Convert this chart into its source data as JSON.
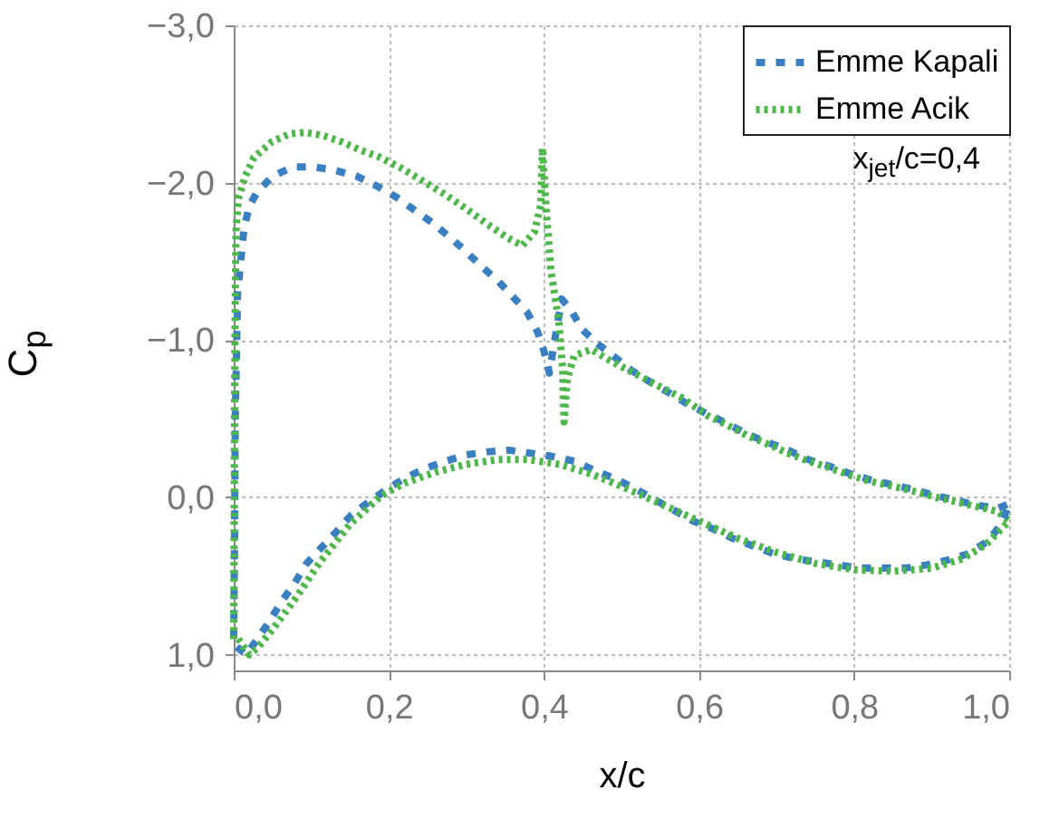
{
  "chart_data": {
    "type": "line",
    "xlabel": "x/c",
    "ylabel": "C$_{p}$",
    "annotations": [
      "x$_{jet}$/c=0,4"
    ],
    "xlim": [
      0,
      1
    ],
    "xticks": [
      {
        "value": 0,
        "label": "0,0"
      },
      {
        "value": 0.2,
        "label": "0,2"
      },
      {
        "value": 0.4,
        "label": "0,4"
      },
      {
        "value": 0.6,
        "label": "0,6"
      },
      {
        "value": 0.8,
        "label": "0,8"
      },
      {
        "value": 1,
        "label": "1,0"
      }
    ],
    "ylim": [
      1.1,
      -3
    ],
    "yticks": [
      {
        "value": -3,
        "label": "−3,0"
      },
      {
        "value": -2,
        "label": "−2,0"
      },
      {
        "value": -1,
        "label": "−1,0"
      },
      {
        "value": 0,
        "label": "0,0"
      },
      {
        "value": 1,
        "label": "1,0"
      }
    ],
    "grid": true,
    "legend": "top right",
    "series": [
      {
        "name": "Emme Kapali",
        "color": "#3a7fc1",
        "line_style": "dashed",
        "x": [
          0.0,
          0.001,
          0.002,
          0.005,
          0.013,
          0.02,
          0.03,
          0.05,
          0.076,
          0.104,
          0.13,
          0.159,
          0.184,
          0.209,
          0.232,
          0.255,
          0.277,
          0.298,
          0.319,
          0.34,
          0.359,
          0.378,
          0.392,
          0.4,
          0.404,
          0.407,
          0.414,
          0.423,
          0.435,
          0.449,
          0.468,
          0.489,
          0.512,
          0.538,
          0.563,
          0.586,
          0.611,
          0.636,
          0.663,
          0.688,
          0.715,
          0.741,
          0.767,
          0.795,
          0.822,
          0.85,
          0.876,
          0.906,
          0.933,
          0.959,
          0.985,
          1.0
        ],
        "values": [
          0.9,
          0.3,
          -0.5,
          -1.3,
          -1.7,
          -1.85,
          -1.94,
          -2.04,
          -2.1,
          -2.1,
          -2.08,
          -2.04,
          -1.98,
          -1.91,
          -1.83,
          -1.75,
          -1.66,
          -1.57,
          -1.47,
          -1.38,
          -1.28,
          -1.18,
          -1.05,
          -0.93,
          -0.86,
          -0.79,
          -1.0,
          -1.26,
          -1.19,
          -1.07,
          -0.98,
          -0.9,
          -0.81,
          -0.73,
          -0.66,
          -0.59,
          -0.53,
          -0.47,
          -0.4,
          -0.35,
          -0.3,
          -0.24,
          -0.2,
          -0.15,
          -0.11,
          -0.08,
          -0.05,
          -0.01,
          0.02,
          0.05,
          0.07,
          0.04
        ]
      },
      {
        "name": "Emme Acik",
        "color": "#4db849",
        "line_style": "dotted",
        "x": [
          0.0,
          0.0005,
          0.001,
          0.002,
          0.003,
          0.006,
          0.014,
          0.026,
          0.049,
          0.072,
          0.092,
          0.115,
          0.139,
          0.162,
          0.189,
          0.217,
          0.244,
          0.271,
          0.298,
          0.326,
          0.353,
          0.372,
          0.388,
          0.396,
          0.398,
          0.403,
          0.409,
          0.419,
          0.424,
          0.426,
          0.43,
          0.439,
          0.461,
          0.485,
          0.516,
          0.547,
          0.579,
          0.611,
          0.636,
          0.663,
          0.688,
          0.715,
          0.741,
          0.767,
          0.795,
          0.822,
          0.85,
          0.876,
          0.906,
          0.933,
          0.959,
          0.985,
          1.0
        ],
        "values": [
          0.9,
          0.3,
          -0.5,
          -1.3,
          -1.7,
          -1.9,
          -2.03,
          -2.16,
          -2.26,
          -2.31,
          -2.32,
          -2.3,
          -2.26,
          -2.21,
          -2.16,
          -2.09,
          -2.01,
          -1.93,
          -1.84,
          -1.74,
          -1.65,
          -1.6,
          -1.69,
          -1.86,
          -2.22,
          -1.82,
          -1.44,
          -1.13,
          -0.82,
          -0.48,
          -0.75,
          -0.9,
          -0.94,
          -0.87,
          -0.79,
          -0.71,
          -0.63,
          -0.52,
          -0.46,
          -0.39,
          -0.34,
          -0.28,
          -0.23,
          -0.19,
          -0.14,
          -0.1,
          -0.07,
          -0.04,
          0.0,
          0.03,
          0.06,
          0.09,
          0.15
        ]
      },
      {
        "color": "#3a7fc1",
        "line_style": "dashed",
        "x": [
          0.004,
          0.016,
          0.032,
          0.047,
          0.062,
          0.078,
          0.094,
          0.113,
          0.132,
          0.152,
          0.174,
          0.197,
          0.22,
          0.245,
          0.273,
          0.3,
          0.328,
          0.355,
          0.384,
          0.411,
          0.439,
          0.466,
          0.491,
          0.516,
          0.541,
          0.567,
          0.592,
          0.618,
          0.643,
          0.67,
          0.697,
          0.724,
          0.752,
          0.78,
          0.807,
          0.836,
          0.865,
          0.893,
          0.92,
          0.946,
          0.972,
          0.99,
          1.0
        ],
        "values": [
          0.95,
          1.0,
          0.89,
          0.78,
          0.66,
          0.55,
          0.42,
          0.32,
          0.22,
          0.11,
          0.03,
          -0.05,
          -0.12,
          -0.18,
          -0.23,
          -0.27,
          -0.29,
          -0.3,
          -0.28,
          -0.26,
          -0.23,
          -0.17,
          -0.12,
          -0.06,
          0.01,
          0.08,
          0.15,
          0.2,
          0.26,
          0.31,
          0.36,
          0.39,
          0.41,
          0.43,
          0.45,
          0.45,
          0.45,
          0.43,
          0.4,
          0.36,
          0.28,
          0.17,
          0.04
        ]
      },
      {
        "color": "#4db849",
        "line_style": "dotted",
        "x": [
          0.006,
          0.02,
          0.03,
          0.05,
          0.08,
          0.11,
          0.15,
          0.19,
          0.22,
          0.26,
          0.3,
          0.34,
          0.38,
          0.42,
          0.46,
          0.5,
          0.55,
          0.6,
          0.65,
          0.7,
          0.75,
          0.8,
          0.85,
          0.9,
          0.94,
          0.97,
          1.0
        ],
        "values": [
          0.9,
          1.0,
          0.96,
          0.84,
          0.64,
          0.42,
          0.17,
          -0.01,
          -0.09,
          -0.16,
          -0.21,
          -0.24,
          -0.24,
          -0.21,
          -0.15,
          -0.07,
          0.04,
          0.15,
          0.26,
          0.35,
          0.42,
          0.46,
          0.47,
          0.45,
          0.39,
          0.3,
          0.15
        ]
      }
    ]
  }
}
